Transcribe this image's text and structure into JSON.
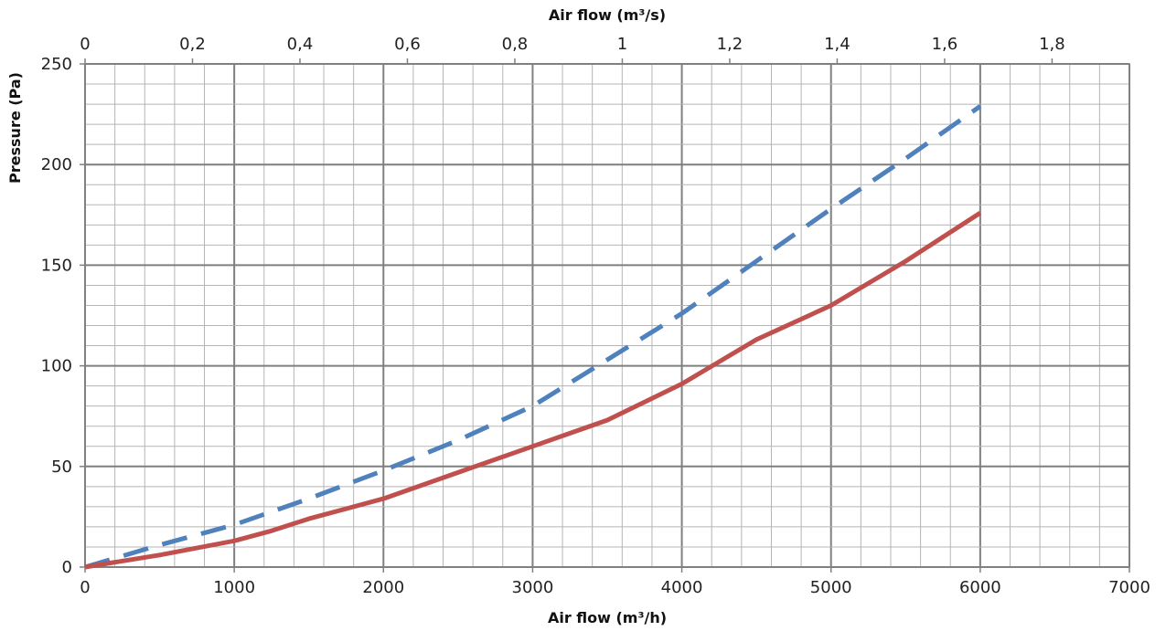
{
  "chart_data": {
    "type": "line",
    "xlabel": "Air flow (m³/h)",
    "x2label": "Air flow (m³/s)",
    "ylabel": "Pressure (Pa)",
    "xlim": [
      0,
      7000
    ],
    "ylim": [
      0,
      250
    ],
    "x2lim": [
      0,
      1.944
    ],
    "x_ticks": [
      0,
      1000,
      2000,
      3000,
      4000,
      5000,
      6000,
      7000
    ],
    "x_tick_labels": [
      "0",
      "1000",
      "2000",
      "3000",
      "4000",
      "5000",
      "6000",
      "7000"
    ],
    "y_ticks": [
      0,
      50,
      100,
      150,
      200,
      250
    ],
    "y_tick_labels": [
      "0",
      "50",
      "100",
      "150",
      "200",
      "250"
    ],
    "x2_ticks": [
      0,
      0.2,
      0.4,
      0.6,
      0.8,
      1.0,
      1.2,
      1.4,
      1.6,
      1.8
    ],
    "x2_tick_labels": [
      "0",
      "0,2",
      "0,4",
      "0,6",
      "0,8",
      "1",
      "1,2",
      "1,4",
      "1,6",
      "1,8"
    ],
    "grid": true,
    "series": [
      {
        "color": "#4f81bd",
        "style": "dashed",
        "x": [
          0,
          500,
          1000,
          1500,
          2000,
          2500,
          3000,
          3500,
          4000,
          4500,
          5000,
          5500,
          6000
        ],
        "y": [
          0,
          11,
          21,
          34,
          48,
          63,
          80,
          103,
          126,
          152,
          178,
          203,
          229
        ]
      },
      {
        "color": "#c0504d",
        "style": "solid",
        "x": [
          0,
          500,
          1000,
          1250,
          1500,
          2000,
          2500,
          3000,
          3500,
          4000,
          4500,
          5000,
          5500,
          6000
        ],
        "y": [
          0,
          6,
          13,
          18,
          24,
          34,
          47,
          60,
          73,
          91,
          113,
          130,
          152,
          176
        ]
      }
    ]
  }
}
